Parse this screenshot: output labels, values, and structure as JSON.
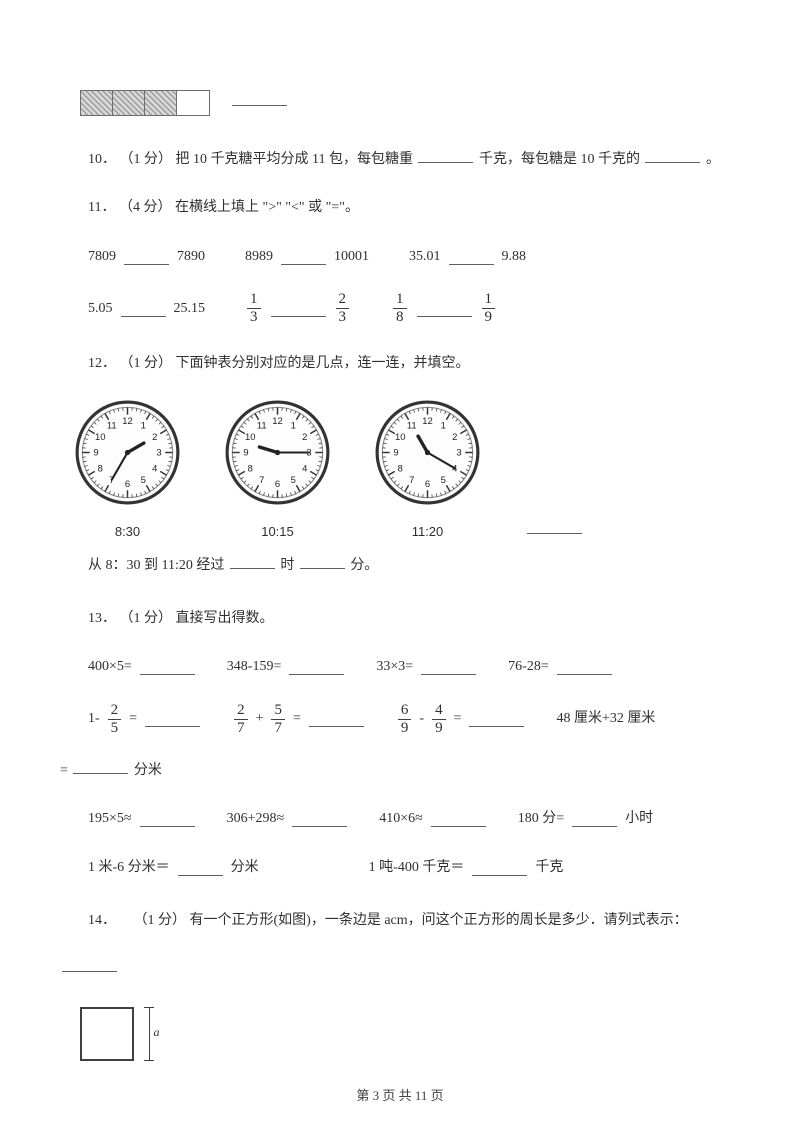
{
  "boxes_blank": "",
  "q10": {
    "num": "10．",
    "pts": "（1 分）",
    "t1": "把 10 千克糖平均分成 11 包，每包糖重",
    "unit1": "千克，每包糖是 10 千克的",
    "period": "。"
  },
  "q11": {
    "num": "11．",
    "pts": "（4 分）",
    "title": "在横线上填上 \">\" \"<\" 或 \"=\"。",
    "r1a": "7809",
    "r1b": "7890",
    "r1c": "8989",
    "r1d": "10001",
    "r1e": "35.01",
    "r1f": "9.88",
    "r2a": "5.05",
    "r2b": "25.15",
    "f1n": "1",
    "f1d": "3",
    "f2n": "2",
    "f2d": "3",
    "f3n": "1",
    "f3d": "8",
    "f4n": "1",
    "f4d": "9"
  },
  "q12": {
    "num": "12．",
    "pts": "（1 分）",
    "title": "下面钟表分别对应的是几点，连一连，并填空。",
    "labels": [
      "8:30",
      "10:15",
      "11:20"
    ],
    "hands": [
      {
        "h": 60,
        "m": 210
      },
      {
        "h": -73,
        "m": 90
      },
      {
        "h": -30,
        "m": 120
      }
    ],
    "foot1": "从 8：30 到 11:20 经过",
    "foot_h": "时",
    "foot_m": "分。"
  },
  "q13": {
    "num": "13．",
    "pts": "（1 分）",
    "title": "直接写出得数。",
    "r1": [
      "400×5=",
      "348-159=",
      "33×3=",
      "76-28="
    ],
    "r2_pre": "1- ",
    "r2_f1n": "2",
    "r2_f1d": "5",
    "r2_f2n": "2",
    "r2_f2d": "7",
    "r2_plus": " + ",
    "r2_f3n": "5",
    "r2_f3d": "7",
    "r2_f4n": "6",
    "r2_f4d": "9",
    "r2_minus": " - ",
    "r2_f5n": "4",
    "r2_f5d": "9",
    "r2_tail_a": "48 厘米+32 厘米",
    "r2_tail_b": "=",
    "r2_tail_unit": "分米",
    "r3": [
      "195×5≈",
      "306+298≈",
      "410×6≈",
      "180 分="
    ],
    "r3_unit": "小时",
    "r4a": "1 米-6 分米＝",
    "r4a_unit": "分米",
    "r4b": "1 吨-400 千克＝",
    "r4b_unit": "千克"
  },
  "q14": {
    "num": "14．",
    "pts": "（1 分）",
    "text": "有一个正方形(如图)，一条边是 acm，问这个正方形的周长是多少．请列式表示：",
    "a": "a"
  },
  "footer": {
    "p": "第 ",
    "cur": "3",
    "mid": " 页  共 ",
    "tot": "11",
    "suf": " 页"
  }
}
